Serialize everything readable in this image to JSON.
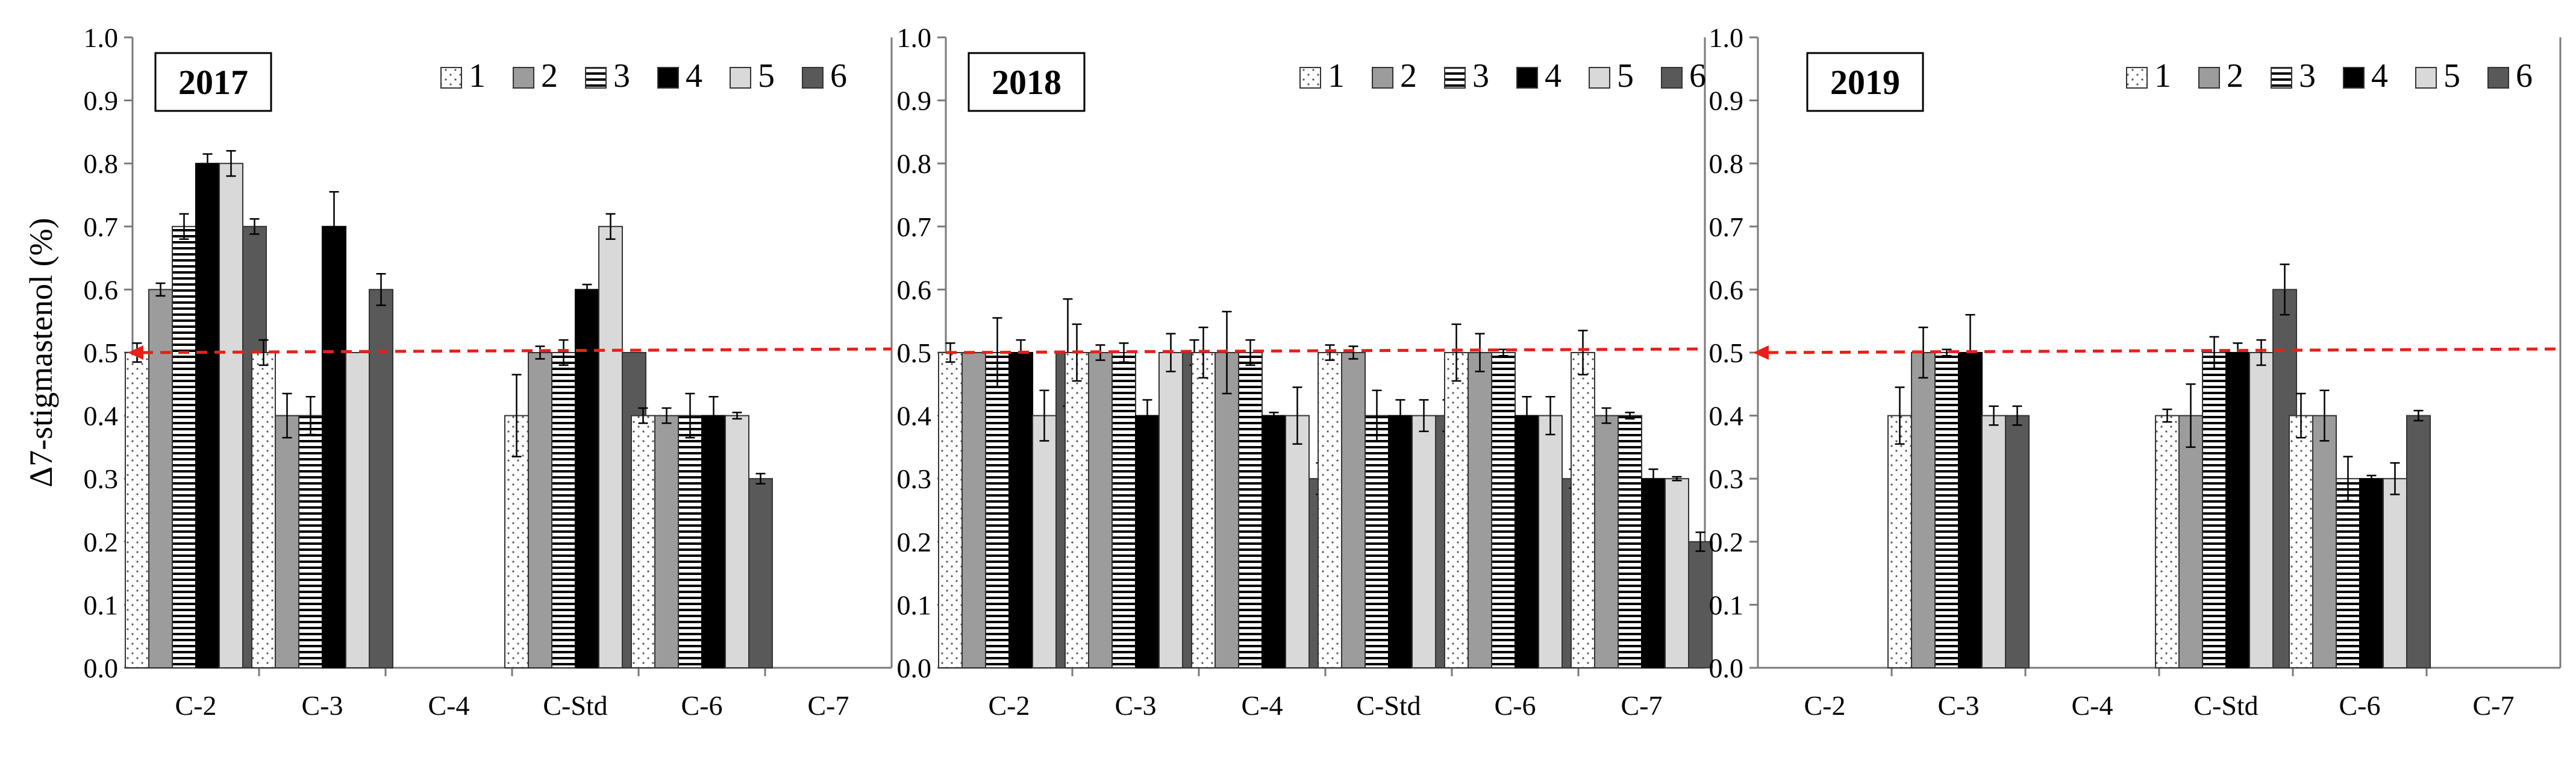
{
  "chart_data": [
    {
      "type": "bar",
      "title": "2017",
      "xlabel": "",
      "ylabel": "Δ7-stigmastenol (%)",
      "ylim": [
        0,
        1.0
      ],
      "yticks": [
        "0.0",
        "0.1",
        "0.2",
        "0.3",
        "0.4",
        "0.5",
        "0.6",
        "0.7",
        "0.8",
        "0.9",
        "1.0"
      ],
      "reference_line": {
        "y": 0.5,
        "style": "red dashed arrow"
      },
      "categories": [
        "C-2",
        "C-3",
        "C-4",
        "C-Std",
        "C-6",
        "C-7"
      ],
      "series": [
        {
          "name": "1",
          "values": [
            0.5,
            0.5,
            null,
            0.4,
            0.4,
            null
          ],
          "errors": [
            0.015,
            0.02,
            null,
            0.065,
            0.012,
            null
          ]
        },
        {
          "name": "2",
          "values": [
            0.6,
            0.4,
            null,
            0.5,
            0.4,
            null
          ],
          "errors": [
            0.01,
            0.035,
            null,
            0.01,
            0.012,
            null
          ]
        },
        {
          "name": "3",
          "values": [
            0.7,
            0.4,
            null,
            0.5,
            0.4,
            null
          ],
          "errors": [
            0.02,
            0.03,
            null,
            0.02,
            0.035,
            null
          ]
        },
        {
          "name": "4",
          "values": [
            0.8,
            0.7,
            null,
            0.6,
            0.4,
            null
          ],
          "errors": [
            0.015,
            0.055,
            null,
            0.008,
            0.03,
            null
          ]
        },
        {
          "name": "5",
          "values": [
            0.8,
            0.5,
            null,
            0.7,
            0.4,
            null
          ],
          "errors": [
            0.02,
            0.0,
            null,
            0.02,
            0.005,
            null
          ]
        },
        {
          "name": "6",
          "values": [
            0.7,
            0.6,
            null,
            0.5,
            0.3,
            null
          ],
          "errors": [
            0.012,
            0.025,
            null,
            0.0,
            0.008,
            null
          ]
        }
      ]
    },
    {
      "type": "bar",
      "title": "2018",
      "xlabel": "",
      "ylabel": "",
      "ylim": [
        0,
        1.0
      ],
      "yticks": [
        "0.0",
        "0.1",
        "0.2",
        "0.3",
        "0.4",
        "0.5",
        "0.6",
        "0.7",
        "0.8",
        "0.9",
        "1.0"
      ],
      "reference_line": {
        "y": 0.5,
        "style": "red dashed"
      },
      "categories": [
        "C-2",
        "C-3",
        "C-4",
        "C-Std",
        "C-6",
        "C-7"
      ],
      "series": [
        {
          "name": "1",
          "values": [
            0.5,
            0.5,
            0.5,
            0.5,
            0.5,
            0.5
          ],
          "errors": [
            0.015,
            0.045,
            0.04,
            0.012,
            0.045,
            0.035
          ]
        },
        {
          "name": "2",
          "values": [
            0.5,
            0.5,
            0.5,
            0.5,
            0.5,
            0.4
          ],
          "errors": [
            0.0,
            0.012,
            0.065,
            0.01,
            0.03,
            0.012
          ]
        },
        {
          "name": "3",
          "values": [
            0.5,
            0.5,
            0.5,
            0.4,
            0.5,
            0.4
          ],
          "errors": [
            0.055,
            0.015,
            0.02,
            0.04,
            0.005,
            0.005
          ]
        },
        {
          "name": "4",
          "values": [
            0.5,
            0.4,
            0.4,
            0.4,
            0.4,
            0.3
          ],
          "errors": [
            0.02,
            0.025,
            0.005,
            0.025,
            0.03,
            0.015
          ]
        },
        {
          "name": "5",
          "values": [
            0.4,
            0.5,
            0.4,
            0.4,
            0.4,
            0.3
          ],
          "errors": [
            0.04,
            0.03,
            0.045,
            0.025,
            0.03,
            0.003
          ]
        },
        {
          "name": "6",
          "values": [
            0.5,
            0.5,
            0.3,
            0.4,
            0.3,
            0.2
          ],
          "errors": [
            0.085,
            0.02,
            0.025,
            0.025,
            0.015,
            0.015
          ]
        }
      ]
    },
    {
      "type": "bar",
      "title": "2019",
      "xlabel": "",
      "ylabel": "",
      "ylim": [
        0,
        1.0
      ],
      "yticks": [
        "0.0",
        "0.1",
        "0.2",
        "0.3",
        "0.4",
        "0.5",
        "0.6",
        "0.7",
        "0.8",
        "0.9",
        "1.0"
      ],
      "reference_line": {
        "y": 0.5,
        "style": "red dashed arrow"
      },
      "categories": [
        "C-2",
        "C-3",
        "C-4",
        "C-Std",
        "C-6",
        "C-7"
      ],
      "series": [
        {
          "name": "1",
          "values": [
            null,
            0.4,
            null,
            0.4,
            0.4,
            null
          ],
          "errors": [
            null,
            0.045,
            null,
            0.01,
            0.035,
            null
          ]
        },
        {
          "name": "2",
          "values": [
            null,
            0.5,
            null,
            0.4,
            0.4,
            null
          ],
          "errors": [
            null,
            0.04,
            null,
            0.05,
            0.04,
            null
          ]
        },
        {
          "name": "3",
          "values": [
            null,
            0.5,
            null,
            0.5,
            0.3,
            null
          ],
          "errors": [
            null,
            0.005,
            null,
            0.025,
            0.035,
            null
          ]
        },
        {
          "name": "4",
          "values": [
            null,
            0.5,
            null,
            0.5,
            0.3,
            null
          ],
          "errors": [
            null,
            0.06,
            null,
            0.015,
            0.005,
            null
          ]
        },
        {
          "name": "5",
          "values": [
            null,
            0.4,
            null,
            0.5,
            0.3,
            null
          ],
          "errors": [
            null,
            0.015,
            null,
            0.02,
            0.025,
            null
          ]
        },
        {
          "name": "6",
          "values": [
            null,
            0.4,
            null,
            0.6,
            0.4,
            null
          ],
          "errors": [
            null,
            0.015,
            null,
            0.04,
            0.008,
            null
          ]
        }
      ]
    }
  ],
  "colors": {
    "reference_line": "#e8201a",
    "axis": "#7a7a7a",
    "series_2": "#9c9c9c",
    "series_4": "#000000",
    "series_5": "#d9d9d9",
    "series_6": "#595959"
  }
}
